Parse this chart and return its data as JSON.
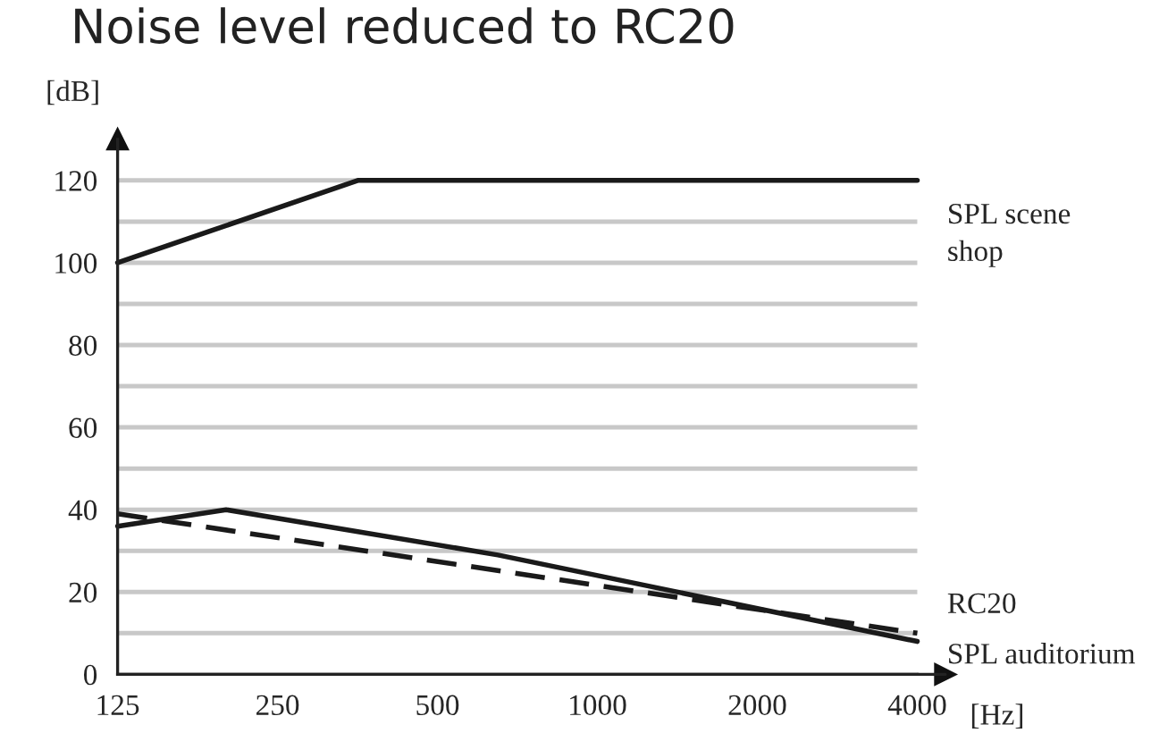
{
  "chart_data": {
    "type": "line",
    "title": "Noise level reduced to RC20",
    "ylabel": "[dB]",
    "xlabel": "[Hz]",
    "log": "x",
    "xlim": [
      125,
      4000
    ],
    "xticks": [
      125,
      250,
      500,
      1000,
      2000,
      4000
    ],
    "ylim": [
      0,
      130
    ],
    "yticks": [
      0,
      {
        "value": 10,
        "label": null
      },
      20,
      {
        "value": 30,
        "label": null
      },
      40,
      {
        "value": 50,
        "label": null
      },
      60,
      {
        "value": 70,
        "label": null
      },
      80,
      {
        "value": 90,
        "label": null
      },
      100,
      {
        "value": 110,
        "label": null
      },
      120
    ],
    "grid": "y",
    "legend": false,
    "marker": "none",
    "series": [
      {
        "name": "SPL scene shop",
        "color": "#1a1a1a",
        "line_style": "solid",
        "x": [
          125,
          354,
          4000
        ],
        "values": [
          100,
          120,
          120
        ]
      },
      {
        "name": "RC20",
        "color": "#1a1a1a",
        "line_style": "dashed",
        "x": [
          125,
          4000
        ],
        "values": [
          39,
          10
        ]
      },
      {
        "name": "SPL auditorium",
        "color": "#1a1a1a",
        "line_style": "solid",
        "x": [
          125,
          200,
          650,
          4000
        ],
        "values": [
          36,
          40,
          29,
          8
        ]
      }
    ]
  }
}
